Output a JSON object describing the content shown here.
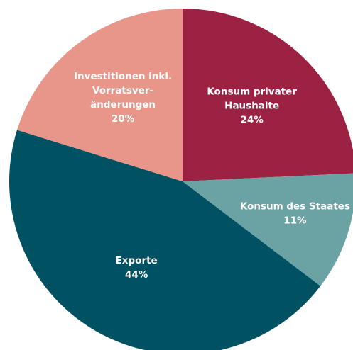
{
  "chart_data": {
    "type": "pie",
    "categories": [
      "Konsum privater\nHaushalte",
      "Konsum des Staates",
      "Exporte",
      "Investitionen inkl.\nVorratsver-\nänderungen"
    ],
    "values": [
      24,
      11,
      44,
      20
    ],
    "value_labels": [
      "24%",
      "11%",
      "44%",
      "20%"
    ],
    "colors": [
      "#9b2242",
      "#6ba3a5",
      "#005161",
      "#e8958a"
    ]
  }
}
